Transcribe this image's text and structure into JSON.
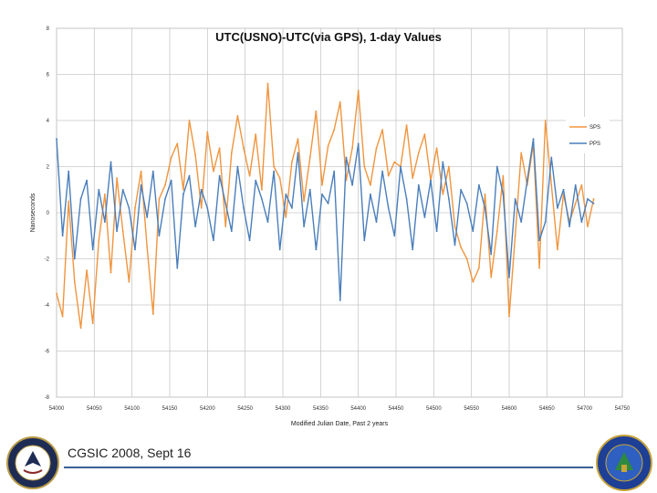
{
  "chart_data": {
    "type": "line",
    "title": "UTC(USNO)-UTC(via GPS), 1-day Values",
    "xlabel": "Modified Julian Date, Past 2 years",
    "ylabel": "Nanoseconds",
    "xlim": [
      54000,
      54750
    ],
    "ylim": [
      -8,
      8
    ],
    "x_ticks": [
      "54000",
      "54050",
      "54100",
      "54150",
      "54200",
      "54250",
      "54300",
      "54350",
      "54400",
      "54450",
      "54500",
      "54550",
      "54600",
      "54650",
      "54700",
      "54750"
    ],
    "y_ticks": [
      "-8",
      "-6",
      "-4",
      "-2",
      "0",
      "2",
      "4",
      "6",
      "8"
    ],
    "grid": true,
    "legend_position": "right",
    "series": [
      {
        "name": "SPS",
        "color": "#f0953e",
        "x": [
          54000,
          54008,
          54016,
          54024,
          54032,
          54040,
          54048,
          54056,
          54064,
          54072,
          54080,
          54088,
          54096,
          54104,
          54112,
          54120,
          54128,
          54136,
          54144,
          54152,
          54160,
          54168,
          54176,
          54184,
          54192,
          54200,
          54208,
          54216,
          54224,
          54232,
          54240,
          54248,
          54256,
          54264,
          54272,
          54280,
          54288,
          54296,
          54304,
          54312,
          54320,
          54328,
          54336,
          54344,
          54352,
          54360,
          54368,
          54376,
          54384,
          54392,
          54400,
          54408,
          54416,
          54424,
          54432,
          54440,
          54448,
          54456,
          54464,
          54472,
          54480,
          54488,
          54496,
          54504,
          54512,
          54520,
          54528,
          54536,
          54544,
          54552,
          54560,
          54568,
          54576,
          54584,
          54592,
          54600,
          54608,
          54616,
          54624,
          54632,
          54640,
          54648,
          54656,
          54664,
          54672,
          54680,
          54688,
          54696,
          54704,
          54712
        ],
        "values": [
          -3.5,
          -4.5,
          0.5,
          -3.0,
          -5.0,
          -2.5,
          -4.8,
          -1.2,
          0.8,
          -2.6,
          1.5,
          -0.8,
          -3.0,
          0.2,
          1.8,
          -1.5,
          -4.4,
          0.6,
          1.2,
          2.4,
          3.0,
          1.0,
          4.0,
          2.5,
          0.2,
          3.5,
          1.8,
          2.8,
          -0.6,
          2.6,
          4.2,
          2.8,
          1.6,
          3.4,
          1.0,
          5.6,
          2.0,
          1.5,
          -0.2,
          2.2,
          3.2,
          0.5,
          2.4,
          4.4,
          1.2,
          2.9,
          3.6,
          4.8,
          1.4,
          2.8,
          5.3,
          2.0,
          1.2,
          2.8,
          3.6,
          1.6,
          2.2,
          2.0,
          3.8,
          1.5,
          2.6,
          3.4,
          1.4,
          2.8,
          0.8,
          2.0,
          -0.6,
          -1.5,
          -2.0,
          -3.0,
          -2.4,
          0.8,
          -2.8,
          -0.8,
          1.6,
          -4.5,
          -1.0,
          2.6,
          1.2,
          3.0,
          -2.4,
          4.0,
          1.2,
          -1.6,
          0.8,
          -0.4,
          0.4,
          1.2,
          -0.6,
          0.6
        ]
      },
      {
        "name": "PPS",
        "color": "#4a7ebb",
        "x": [
          54000,
          54008,
          54016,
          54024,
          54032,
          54040,
          54048,
          54056,
          54064,
          54072,
          54080,
          54088,
          54096,
          54104,
          54112,
          54120,
          54128,
          54136,
          54144,
          54152,
          54160,
          54168,
          54176,
          54184,
          54192,
          54200,
          54208,
          54216,
          54224,
          54232,
          54240,
          54248,
          54256,
          54264,
          54272,
          54280,
          54288,
          54296,
          54304,
          54312,
          54320,
          54328,
          54336,
          54344,
          54352,
          54360,
          54368,
          54376,
          54384,
          54392,
          54400,
          54408,
          54416,
          54424,
          54432,
          54440,
          54448,
          54456,
          54464,
          54472,
          54480,
          54488,
          54496,
          54504,
          54512,
          54520,
          54528,
          54536,
          54544,
          54552,
          54560,
          54568,
          54576,
          54584,
          54592,
          54600,
          54608,
          54616,
          54624,
          54632,
          54640,
          54648,
          54656,
          54664,
          54672,
          54680,
          54688,
          54696,
          54704,
          54712
        ],
        "values": [
          3.2,
          -1.0,
          1.8,
          -2.0,
          0.6,
          1.4,
          -1.6,
          1.0,
          -0.4,
          2.2,
          -0.8,
          1.0,
          0.2,
          -1.6,
          1.2,
          -0.2,
          1.8,
          -1.0,
          0.6,
          1.4,
          -2.4,
          0.8,
          1.6,
          -0.6,
          1.0,
          0.2,
          -1.2,
          1.6,
          0.4,
          -0.8,
          2.0,
          0.2,
          -1.2,
          1.4,
          0.6,
          -0.4,
          1.8,
          -1.6,
          0.8,
          0.2,
          2.6,
          -0.6,
          1.0,
          -1.6,
          0.8,
          0.4,
          1.8,
          -3.8,
          2.4,
          1.2,
          3.0,
          -1.2,
          0.8,
          -0.4,
          1.8,
          0.2,
          -1.0,
          2.0,
          0.6,
          -1.6,
          1.2,
          -0.2,
          1.4,
          -0.8,
          2.2,
          0.6,
          -1.4,
          1.0,
          0.4,
          -0.8,
          1.2,
          0.2,
          -1.8,
          2.0,
          0.8,
          -2.8,
          0.6,
          -0.4,
          1.4,
          3.2,
          -1.2,
          -0.4,
          2.4,
          0.2,
          1.0,
          -0.6,
          1.2,
          -0.4,
          0.6,
          0.4
        ]
      }
    ]
  },
  "footer": {
    "caption": "CGSIC 2008, Sept 16"
  },
  "seals": {
    "left_icon": "navy-seal-icon",
    "right_icon": "observatory-seal-icon"
  }
}
